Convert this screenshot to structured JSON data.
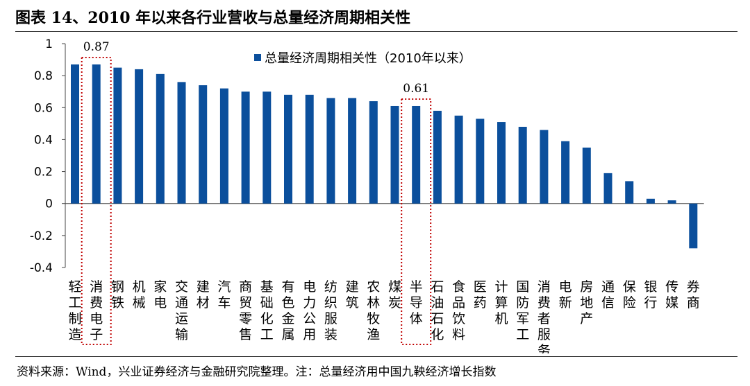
{
  "figure": {
    "title": "图表 14、2010 年以来各行业营收与总量经济周期相关性",
    "source": "资料来源：Wind，兴业证券经济与金融研究院整理。注：总量经济用中国九鞅经济增长指数"
  },
  "chart_data": {
    "type": "bar",
    "categories": [
      "轻工制造",
      "消费电子",
      "钢铁",
      "机械",
      "家电",
      "交通运输",
      "建材",
      "汽车",
      "商贸零售",
      "基础化工",
      "有色金属",
      "电力公用",
      "纺织服装",
      "建筑",
      "农林牧渔",
      "煤炭",
      "半导体",
      "石油石化",
      "食品饮料",
      "医药",
      "计算机",
      "国防军工",
      "消费者服务",
      "电新",
      "房地产",
      "通信",
      "保险",
      "银行",
      "传媒",
      "券商"
    ],
    "series": [
      {
        "name": "总量经济周期相关性（2010年以来）",
        "values": [
          0.87,
          0.87,
          0.85,
          0.84,
          0.81,
          0.76,
          0.74,
          0.72,
          0.7,
          0.7,
          0.68,
          0.68,
          0.66,
          0.66,
          0.64,
          0.61,
          0.61,
          0.58,
          0.55,
          0.53,
          0.51,
          0.48,
          0.46,
          0.39,
          0.35,
          0.19,
          0.14,
          0.03,
          0.02,
          -0.28
        ]
      }
    ],
    "yticks": [
      "1",
      "0.8",
      "0.6",
      "0.4",
      "0.2",
      "0",
      "-0.2",
      "-0.4"
    ],
    "ylim": [
      -0.4,
      1
    ],
    "legend_position": "top-center",
    "bar_color": "#0b4f9c",
    "highlight_color": "#c00000",
    "highlights": [
      {
        "category": "消费电子",
        "label": "0.87"
      },
      {
        "category": "半导体",
        "label": "0.61"
      }
    ]
  }
}
